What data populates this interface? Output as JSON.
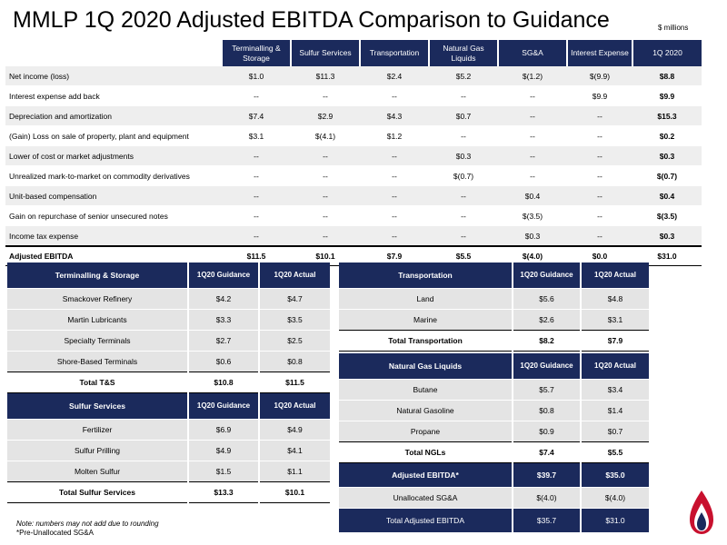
{
  "title": "MMLP 1Q 2020 Adjusted EBITDA Comparison to Guidance",
  "units": "$ millions",
  "main": {
    "columns": [
      "Terminalling & Storage",
      "Sulfur Services",
      "Transportation",
      "Natural Gas Liquids",
      "SG&A",
      "Interest Expense",
      "1Q 2020"
    ],
    "rows": [
      {
        "label": "Net income (loss)",
        "values": [
          "$1.0",
          "$11.3",
          "$2.4",
          "$5.2",
          "$(1.2)",
          "$(9.9)",
          "$8.8"
        ]
      },
      {
        "label": "Interest expense add back",
        "values": [
          "--",
          "--",
          "--",
          "--",
          "--",
          "$9.9",
          "$9.9"
        ]
      },
      {
        "label": "Depreciation and amortization",
        "values": [
          "$7.4",
          "$2.9",
          "$4.3",
          "$0.7",
          "--",
          "--",
          "$15.3"
        ]
      },
      {
        "label": "(Gain) Loss on sale of property, plant and equipment",
        "values": [
          "$3.1",
          "$(4.1)",
          "$1.2",
          "--",
          "--",
          "--",
          "$0.2"
        ]
      },
      {
        "label": "Lower of cost or market adjustments",
        "values": [
          "--",
          "--",
          "--",
          "$0.3",
          "--",
          "--",
          "$0.3"
        ]
      },
      {
        "label": "Unrealized mark-to-market on commodity derivatives",
        "values": [
          "--",
          "--",
          "--",
          "$(0.7)",
          "--",
          "--",
          "$(0.7)"
        ]
      },
      {
        "label": "Unit-based compensation",
        "values": [
          "--",
          "--",
          "--",
          "--",
          "$0.4",
          "--",
          "$0.4"
        ]
      },
      {
        "label": "Gain on repurchase of senior unsecured notes",
        "values": [
          "--",
          "--",
          "--",
          "--",
          "$(3.5)",
          "--",
          "$(3.5)"
        ]
      },
      {
        "label": "Income tax expense",
        "values": [
          "--",
          "--",
          "--",
          "--",
          "$0.3",
          "--",
          "$0.3"
        ]
      }
    ],
    "total": {
      "label": "Adjusted EBITDA",
      "values": [
        "$11.5",
        "$10.1",
        "$7.9",
        "$5.5",
        "$(4.0)",
        "$0.0",
        "$31.0"
      ]
    }
  },
  "terminalling": {
    "header": "Terminalling & Storage",
    "col1": "1Q20 Guidance",
    "col2": "1Q20 Actual",
    "rows": [
      {
        "label": "Smackover Refinery",
        "guidance": "$4.2",
        "actual": "$4.7"
      },
      {
        "label": "Martin Lubricants",
        "guidance": "$3.3",
        "actual": "$3.5"
      },
      {
        "label": "Specialty Terminals",
        "guidance": "$2.7",
        "actual": "$2.5"
      },
      {
        "label": "Shore-Based Terminals",
        "guidance": "$0.6",
        "actual": "$0.8"
      }
    ],
    "total": {
      "label": "Total T&S",
      "guidance": "$10.8",
      "actual": "$11.5"
    }
  },
  "sulfur": {
    "header": "Sulfur Services",
    "col1": "1Q20 Guidance",
    "col2": "1Q20 Actual",
    "rows": [
      {
        "label": "Fertilizer",
        "guidance": "$6.9",
        "actual": "$4.9"
      },
      {
        "label": "Sulfur Prilling",
        "guidance": "$4.9",
        "actual": "$4.1"
      },
      {
        "label": "Molten Sulfur",
        "guidance": "$1.5",
        "actual": "$1.1"
      }
    ],
    "total": {
      "label": "Total Sulfur Services",
      "guidance": "$13.3",
      "actual": "$10.1"
    }
  },
  "transportation": {
    "header": "Transportation",
    "col1": "1Q20 Guidance",
    "col2": "1Q20 Actual",
    "rows": [
      {
        "label": "Land",
        "guidance": "$5.6",
        "actual": "$4.8"
      },
      {
        "label": "Marine",
        "guidance": "$2.6",
        "actual": "$3.1"
      }
    ],
    "total": {
      "label": "Total Transportation",
      "guidance": "$8.2",
      "actual": "$7.9"
    }
  },
  "ngl": {
    "header": "Natural Gas Liquids",
    "col1": "1Q20 Guidance",
    "col2": "1Q20 Actual",
    "rows": [
      {
        "label": "Butane",
        "guidance": "$5.7",
        "actual": "$3.4"
      },
      {
        "label": "Natural Gasoline",
        "guidance": "$0.8",
        "actual": "$1.4"
      },
      {
        "label": "Propane",
        "guidance": "$0.9",
        "actual": "$0.7"
      }
    ],
    "total": {
      "label": "Total NGLs",
      "guidance": "$7.4",
      "actual": "$5.5"
    },
    "adjusted": {
      "label": "Adjusted EBITDA*",
      "guidance": "$39.7",
      "actual": "$35.0"
    },
    "unallocated": {
      "label": "Unallocated SG&A",
      "guidance": "$(4.0)",
      "actual": "$(4.0)"
    },
    "grand_total": {
      "label": "Total Adjusted EBITDA",
      "guidance": "$35.7",
      "actual": "$31.0"
    }
  },
  "notes": {
    "line1": "Note: numbers may not add due to rounding",
    "line2": "*Pre-Unallocated SG&A"
  },
  "colors": {
    "navy": "#1b2a5c",
    "logo_red": "#c8102e",
    "logo_blue": "#1b2a5c"
  },
  "logo": {
    "icon": "flame-logo-icon"
  }
}
